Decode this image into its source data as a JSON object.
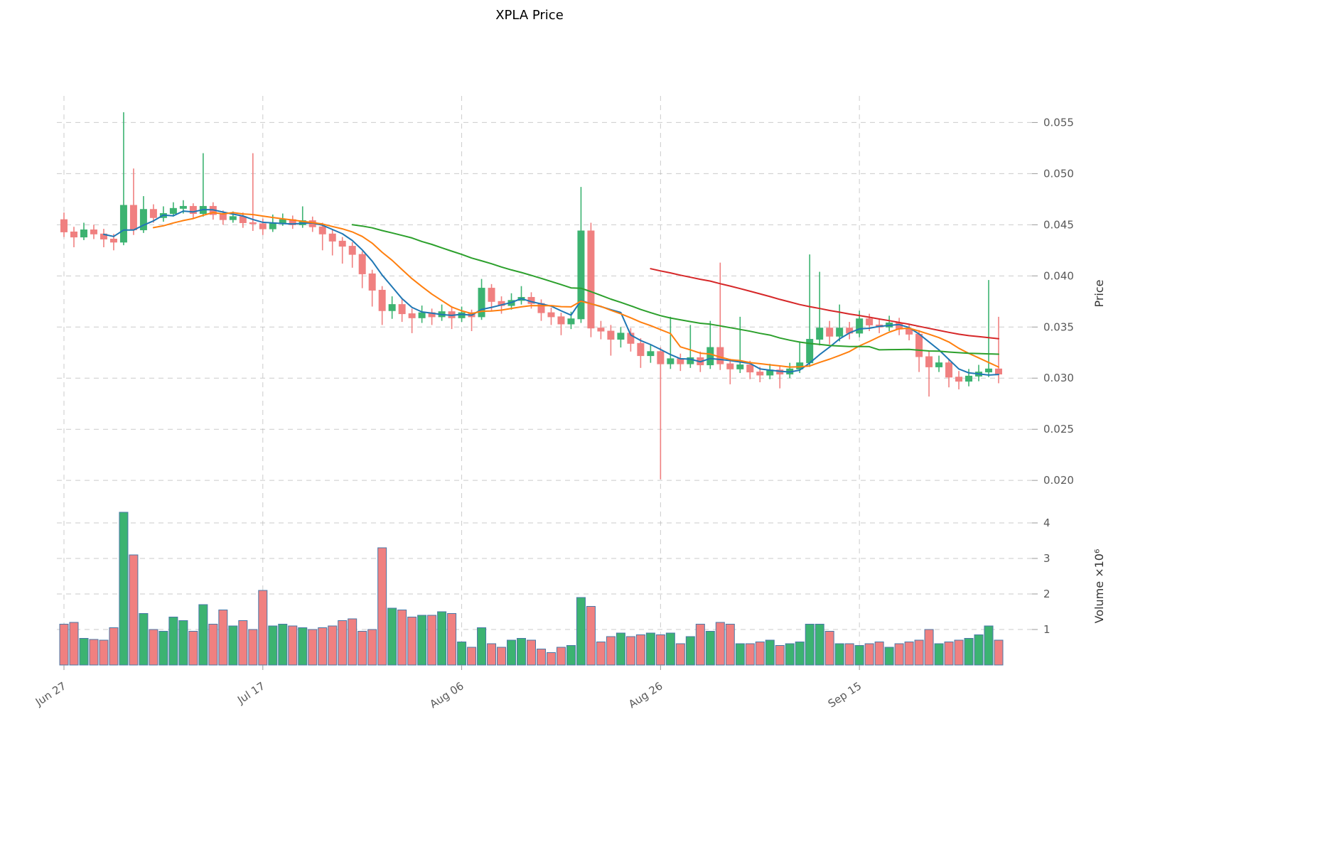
{
  "chart_data": {
    "type": "candlestick",
    "title": "XPLA Price",
    "ylabel_price": "Price",
    "ylabel_volume": "Volume  ×10⁶",
    "x_ticks": {
      "indices": [
        0,
        20,
        40,
        60,
        80
      ],
      "labels": [
        "Jun 27",
        "Jul 17",
        "Aug 06",
        "Aug 26",
        "Sep 15"
      ]
    },
    "price_ticks": [
      0.02,
      0.025,
      0.03,
      0.035,
      0.04,
      0.045,
      0.05,
      0.055
    ],
    "volume_ticks": [
      1,
      2,
      3,
      4
    ],
    "volume_unit": "millions",
    "legend_position": "none",
    "grid": true,
    "colors": {
      "up": "#3CB371",
      "down": "#F08080",
      "volume_edge": "#4878A8",
      "ma5": "#1f77b4",
      "ma10": "#ff7f0e",
      "ma30": "#2ca02c",
      "ma60": "#d62728",
      "grid": "#b0b0b0",
      "tick_text": "#595959"
    },
    "moving_averages": [
      {
        "name": "ma-5",
        "window": 5,
        "color_key": "ma5"
      },
      {
        "name": "ma-10",
        "window": 10,
        "color_key": "ma10"
      },
      {
        "name": "ma-30",
        "window": 30,
        "color_key": "ma30"
      },
      {
        "name": "ma-60",
        "window": 60,
        "color_key": "ma60"
      }
    ],
    "ohlcv_columns": [
      "open",
      "high",
      "low",
      "close",
      "volume_millions"
    ],
    "ohlcv": [
      [
        0.0455,
        0.0462,
        0.0438,
        0.0443,
        1.15
      ],
      [
        0.0443,
        0.0448,
        0.0428,
        0.0438,
        1.2
      ],
      [
        0.0438,
        0.0452,
        0.0435,
        0.0445,
        0.75
      ],
      [
        0.0445,
        0.045,
        0.0436,
        0.0441,
        0.72
      ],
      [
        0.0441,
        0.0446,
        0.0428,
        0.0436,
        0.7
      ],
      [
        0.0436,
        0.0441,
        0.0425,
        0.0433,
        1.05
      ],
      [
        0.0433,
        0.056,
        0.043,
        0.0469,
        4.3
      ],
      [
        0.0469,
        0.0505,
        0.044,
        0.0445,
        3.1
      ],
      [
        0.0445,
        0.0478,
        0.0442,
        0.0465,
        1.45
      ],
      [
        0.0465,
        0.047,
        0.0452,
        0.0457,
        1.0
      ],
      [
        0.0457,
        0.0468,
        0.0453,
        0.0461,
        0.95
      ],
      [
        0.0461,
        0.0472,
        0.0458,
        0.0466,
        1.35
      ],
      [
        0.0466,
        0.0474,
        0.0461,
        0.0468,
        1.25
      ],
      [
        0.0468,
        0.0471,
        0.0456,
        0.0461,
        0.95
      ],
      [
        0.0461,
        0.052,
        0.0458,
        0.0468,
        1.7
      ],
      [
        0.0468,
        0.0472,
        0.0455,
        0.046,
        1.15
      ],
      [
        0.046,
        0.0464,
        0.045,
        0.0455,
        1.55
      ],
      [
        0.0455,
        0.0463,
        0.0452,
        0.0458,
        1.1
      ],
      [
        0.0458,
        0.0462,
        0.0447,
        0.0452,
        1.25
      ],
      [
        0.0452,
        0.052,
        0.0444,
        0.0451,
        1.0
      ],
      [
        0.0451,
        0.0456,
        0.044,
        0.0446,
        2.1
      ],
      [
        0.0446,
        0.046,
        0.0443,
        0.0452,
        1.1
      ],
      [
        0.0452,
        0.0461,
        0.0449,
        0.0455,
        1.15
      ],
      [
        0.0455,
        0.0459,
        0.0446,
        0.045,
        1.1
      ],
      [
        0.045,
        0.0468,
        0.0447,
        0.0454,
        1.05
      ],
      [
        0.0454,
        0.0458,
        0.0443,
        0.0448,
        1.0
      ],
      [
        0.0448,
        0.0452,
        0.0425,
        0.0441,
        1.05
      ],
      [
        0.0441,
        0.0445,
        0.042,
        0.0434,
        1.1
      ],
      [
        0.0434,
        0.0438,
        0.0412,
        0.0429,
        1.25
      ],
      [
        0.0429,
        0.0433,
        0.0408,
        0.0421,
        1.3
      ],
      [
        0.0421,
        0.0424,
        0.0388,
        0.0402,
        0.95
      ],
      [
        0.0402,
        0.0406,
        0.037,
        0.0386,
        1.0
      ],
      [
        0.0386,
        0.039,
        0.0352,
        0.0366,
        3.3
      ],
      [
        0.0366,
        0.038,
        0.0358,
        0.0372,
        1.6
      ],
      [
        0.0372,
        0.0377,
        0.0355,
        0.0363,
        1.55
      ],
      [
        0.0363,
        0.0368,
        0.0344,
        0.0359,
        1.35
      ],
      [
        0.0359,
        0.0371,
        0.0354,
        0.0364,
        1.4
      ],
      [
        0.0364,
        0.0368,
        0.0352,
        0.036,
        1.4
      ],
      [
        0.036,
        0.0372,
        0.0356,
        0.0365,
        1.5
      ],
      [
        0.0365,
        0.0369,
        0.0348,
        0.0359,
        1.45
      ],
      [
        0.0359,
        0.037,
        0.0355,
        0.0364,
        0.65
      ],
      [
        0.0364,
        0.0367,
        0.0346,
        0.036,
        0.5
      ],
      [
        0.036,
        0.0397,
        0.0357,
        0.0388,
        1.05
      ],
      [
        0.0388,
        0.0392,
        0.0366,
        0.0375,
        0.6
      ],
      [
        0.0375,
        0.038,
        0.0363,
        0.0371,
        0.5
      ],
      [
        0.0371,
        0.0383,
        0.0367,
        0.0376,
        0.7
      ],
      [
        0.0376,
        0.039,
        0.0372,
        0.0379,
        0.75
      ],
      [
        0.0379,
        0.0384,
        0.0368,
        0.0373,
        0.7
      ],
      [
        0.0373,
        0.0377,
        0.0356,
        0.0364,
        0.45
      ],
      [
        0.0364,
        0.0369,
        0.0352,
        0.036,
        0.35
      ],
      [
        0.036,
        0.0364,
        0.0342,
        0.0353,
        0.5
      ],
      [
        0.0353,
        0.0365,
        0.0348,
        0.0358,
        0.55
      ],
      [
        0.0358,
        0.0487,
        0.0354,
        0.0444,
        1.9
      ],
      [
        0.0444,
        0.0452,
        0.034,
        0.0349,
        1.65
      ],
      [
        0.0349,
        0.0356,
        0.0338,
        0.0346,
        0.65
      ],
      [
        0.0346,
        0.0352,
        0.0322,
        0.0338,
        0.8
      ],
      [
        0.0338,
        0.035,
        0.033,
        0.0344,
        0.9
      ],
      [
        0.0344,
        0.0349,
        0.0326,
        0.0334,
        0.8
      ],
      [
        0.0334,
        0.0339,
        0.031,
        0.0322,
        0.85
      ],
      [
        0.0322,
        0.0333,
        0.0315,
        0.0326,
        0.9
      ],
      [
        0.0326,
        0.033,
        0.0201,
        0.0314,
        0.85
      ],
      [
        0.0314,
        0.036,
        0.0309,
        0.0319,
        0.9
      ],
      [
        0.0319,
        0.0324,
        0.0307,
        0.0314,
        0.6
      ],
      [
        0.0314,
        0.0352,
        0.031,
        0.032,
        0.8
      ],
      [
        0.032,
        0.0326,
        0.0306,
        0.0313,
        1.15
      ],
      [
        0.0313,
        0.0356,
        0.0309,
        0.033,
        0.95
      ],
      [
        0.033,
        0.0413,
        0.0308,
        0.0314,
        1.2
      ],
      [
        0.0314,
        0.0319,
        0.0294,
        0.0309,
        1.15
      ],
      [
        0.0309,
        0.036,
        0.0305,
        0.0313,
        0.6
      ],
      [
        0.0313,
        0.0317,
        0.0299,
        0.0306,
        0.6
      ],
      [
        0.0306,
        0.0311,
        0.0296,
        0.0303,
        0.65
      ],
      [
        0.0303,
        0.0314,
        0.0299,
        0.0308,
        0.7
      ],
      [
        0.0308,
        0.0312,
        0.029,
        0.0304,
        0.55
      ],
      [
        0.0304,
        0.0315,
        0.03,
        0.0309,
        0.6
      ],
      [
        0.0309,
        0.0336,
        0.0305,
        0.0315,
        0.65
      ],
      [
        0.0315,
        0.0421,
        0.0311,
        0.0338,
        1.15
      ],
      [
        0.0338,
        0.0404,
        0.0332,
        0.0349,
        1.15
      ],
      [
        0.0349,
        0.0356,
        0.0333,
        0.0341,
        0.95
      ],
      [
        0.0341,
        0.0372,
        0.0336,
        0.0349,
        0.6
      ],
      [
        0.0349,
        0.0355,
        0.0338,
        0.0344,
        0.6
      ],
      [
        0.0344,
        0.0366,
        0.034,
        0.0358,
        0.55
      ],
      [
        0.0358,
        0.0363,
        0.0346,
        0.0352,
        0.6
      ],
      [
        0.0352,
        0.0358,
        0.0344,
        0.035,
        0.65
      ],
      [
        0.035,
        0.0361,
        0.0346,
        0.0354,
        0.5
      ],
      [
        0.0354,
        0.0359,
        0.0342,
        0.0348,
        0.6
      ],
      [
        0.0348,
        0.0353,
        0.0337,
        0.0343,
        0.65
      ],
      [
        0.0343,
        0.0347,
        0.0306,
        0.0321,
        0.7
      ],
      [
        0.0321,
        0.0327,
        0.0282,
        0.0311,
        1.0
      ],
      [
        0.0311,
        0.0322,
        0.0306,
        0.0315,
        0.6
      ],
      [
        0.0315,
        0.0319,
        0.0291,
        0.0301,
        0.65
      ],
      [
        0.0301,
        0.0307,
        0.0289,
        0.0297,
        0.7
      ],
      [
        0.0297,
        0.0309,
        0.0292,
        0.0302,
        0.75
      ],
      [
        0.0302,
        0.0313,
        0.0297,
        0.0306,
        0.85
      ],
      [
        0.0306,
        0.0396,
        0.0301,
        0.0309,
        1.1
      ],
      [
        0.0309,
        0.036,
        0.0295,
        0.0304,
        0.7
      ]
    ]
  }
}
